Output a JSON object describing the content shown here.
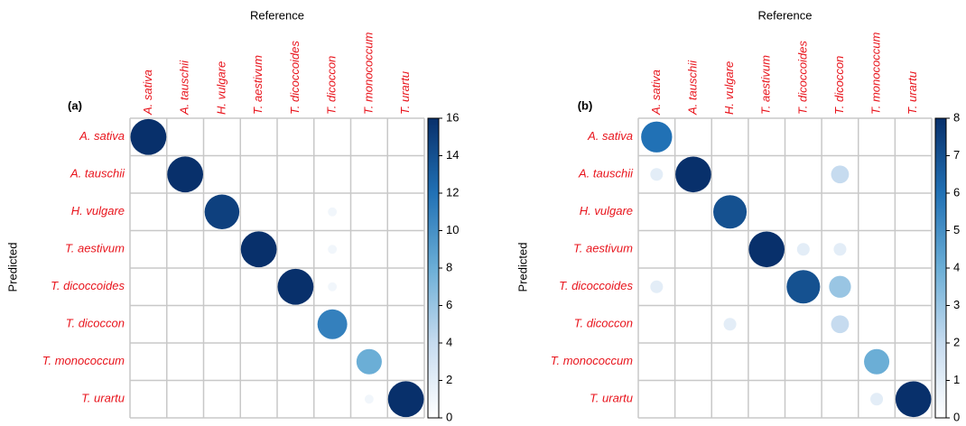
{
  "chart_data": [
    {
      "type": "corrplot",
      "label": "(a)",
      "x_label": "Reference",
      "y_label": "Predicted",
      "categories": [
        "A. sativa",
        "A. tauschii",
        "H. vulgare",
        "T. aestivum",
        "T. dicoccoides",
        "T. dicoccon",
        "T. monococcum",
        "T. urartu"
      ],
      "rows": [
        "A. sativa",
        "A. tauschii",
        "H. vulgare",
        "T. aestivum",
        "T. dicoccoides",
        "T. dicoccon",
        "T. monococcum",
        "T. urartu"
      ],
      "values": [
        [
          16,
          0,
          0,
          0,
          0,
          0,
          0,
          0
        ],
        [
          0,
          16,
          0,
          0,
          0,
          0,
          0,
          0
        ],
        [
          0,
          0,
          15,
          0,
          0,
          1,
          0,
          0
        ],
        [
          0,
          0,
          0,
          16,
          0,
          1,
          0,
          0
        ],
        [
          0,
          0,
          0,
          0,
          16,
          1,
          0,
          0
        ],
        [
          0,
          0,
          0,
          0,
          0,
          11,
          0,
          0
        ],
        [
          0,
          0,
          0,
          0,
          0,
          0,
          8,
          0
        ],
        [
          0,
          0,
          0,
          0,
          0,
          0,
          1,
          16
        ]
      ],
      "clim": [
        0,
        16
      ],
      "cticks": [
        0,
        2,
        4,
        6,
        8,
        10,
        12,
        14,
        16
      ]
    },
    {
      "type": "corrplot",
      "label": "(b)",
      "x_label": "Reference",
      "y_label": "Predicted",
      "categories": [
        "A. sativa",
        "A. tauschii",
        "H. vulgare",
        "T. aestivum",
        "T. dicoccoides",
        "T. dicoccon",
        "T. monococcum",
        "T. urartu"
      ],
      "rows": [
        "A. sativa",
        "A. tauschii",
        "H. vulgare",
        "T. aestivum",
        "T. dicoccoides",
        "T. dicoccon",
        "T. monococcum",
        "T. urartu"
      ],
      "values": [
        [
          6,
          0,
          0,
          0,
          0,
          0,
          0,
          0
        ],
        [
          1,
          8,
          0,
          0,
          0,
          2,
          0,
          0
        ],
        [
          0,
          0,
          7,
          0,
          0,
          0,
          0,
          0
        ],
        [
          0,
          0,
          0,
          8,
          1,
          1,
          0,
          0
        ],
        [
          1,
          0,
          0,
          0,
          7,
          3,
          0,
          0
        ],
        [
          0,
          0,
          1,
          0,
          0,
          2,
          0,
          0
        ],
        [
          0,
          0,
          0,
          0,
          0,
          0,
          4,
          0
        ],
        [
          0,
          0,
          0,
          0,
          0,
          0,
          1,
          8
        ]
      ],
      "clim": [
        0,
        8
      ],
      "cticks": [
        0,
        1,
        2,
        3,
        4,
        5,
        6,
        7,
        8
      ]
    }
  ]
}
